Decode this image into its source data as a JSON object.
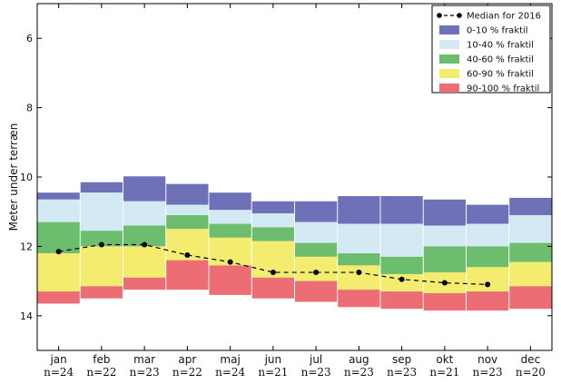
{
  "chart_data": {
    "type": "bar",
    "ylabel": "Meter under terræn",
    "xlabel": "",
    "ylim": [
      15,
      5
    ],
    "y_ticks": [
      6,
      8,
      10,
      12,
      14
    ],
    "y_inverted": true,
    "grid": false,
    "legend_position": "top-right",
    "categories": [
      "jan",
      "feb",
      "mar",
      "apr",
      "maj",
      "jun",
      "jul",
      "aug",
      "sep",
      "okt",
      "nov",
      "dec"
    ],
    "n_labels": [
      "n=24",
      "n=22",
      "n=23",
      "n=22",
      "n=24",
      "n=21",
      "n=23",
      "n=23",
      "n=23",
      "n=21",
      "n=23",
      "n=20"
    ],
    "quantile_bounds": {
      "p0": [
        10.45,
        10.15,
        9.98,
        10.2,
        10.45,
        10.7,
        10.7,
        10.55,
        10.55,
        10.65,
        10.8,
        10.6
      ],
      "p10": [
        10.65,
        10.45,
        10.7,
        10.8,
        10.95,
        11.05,
        11.3,
        11.35,
        11.35,
        11.4,
        11.35,
        11.1
      ],
      "p40": [
        11.3,
        11.55,
        11.4,
        11.1,
        11.35,
        11.45,
        11.9,
        12.2,
        12.3,
        12.0,
        12.0,
        11.9
      ],
      "p60": [
        12.2,
        12.0,
        12.0,
        11.5,
        11.75,
        11.85,
        12.3,
        12.55,
        12.8,
        12.75,
        12.6,
        12.45
      ],
      "p90": [
        13.3,
        13.15,
        12.9,
        12.4,
        12.55,
        12.9,
        13.0,
        13.25,
        13.3,
        13.35,
        13.3,
        13.15
      ],
      "p100": [
        13.65,
        13.5,
        13.25,
        13.25,
        13.4,
        13.5,
        13.6,
        13.75,
        13.8,
        13.85,
        13.85,
        13.8
      ]
    },
    "series": [
      {
        "name": "Median for 2016",
        "values": [
          12.15,
          11.95,
          11.95,
          12.25,
          12.45,
          12.75,
          12.75,
          12.75,
          12.95,
          13.05,
          13.1,
          null
        ]
      }
    ],
    "legend": [
      {
        "label": "Median for 2016",
        "kind": "line",
        "color": "#000000"
      },
      {
        "label": "0-10 % fraktil",
        "kind": "patch",
        "color": "#6f71b8"
      },
      {
        "label": "10-40 % fraktil",
        "kind": "patch",
        "color": "#d3e9f3"
      },
      {
        "label": "40-60 % fraktil",
        "kind": "patch",
        "color": "#6cbd6e"
      },
      {
        "label": "60-90 % fraktil",
        "kind": "patch",
        "color": "#f3ec6e"
      },
      {
        "label": "90-100 % fraktil",
        "kind": "patch",
        "color": "#ec6d73"
      }
    ],
    "band_colors": [
      "#6f71b8",
      "#d3e9f3",
      "#6cbd6e",
      "#f3ec6e",
      "#ec6d73"
    ]
  }
}
